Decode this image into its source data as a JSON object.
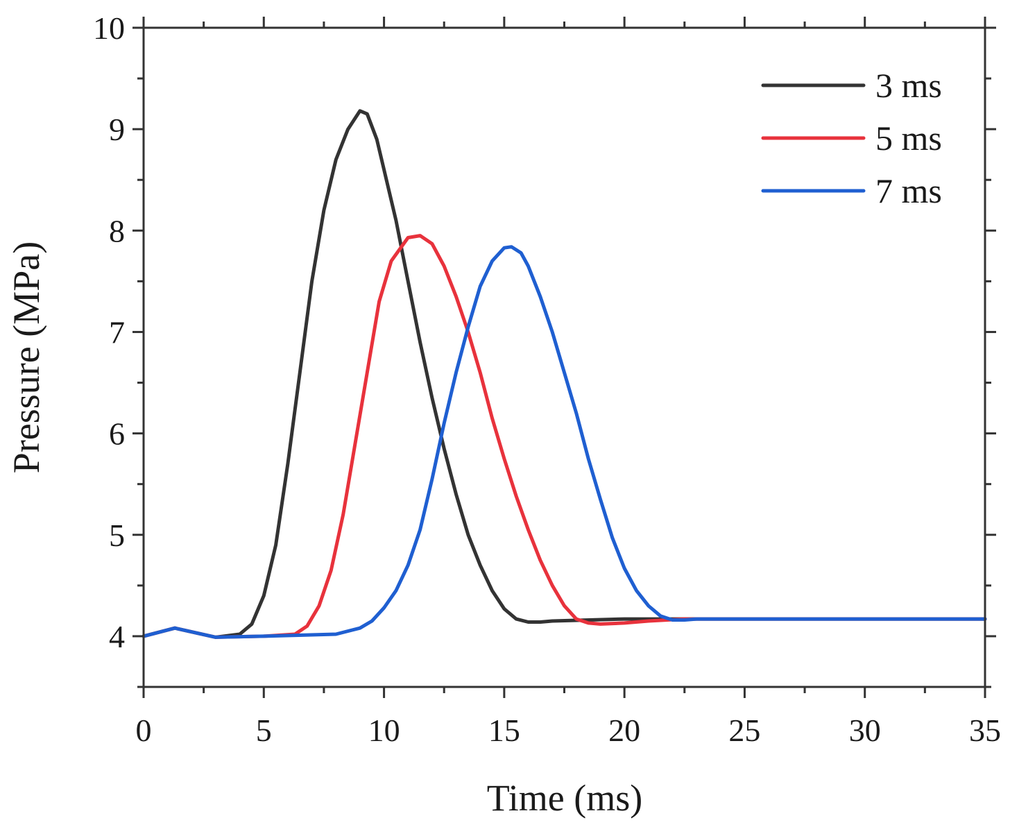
{
  "chart_data": {
    "type": "line",
    "title": "",
    "xlabel": "Time (ms)",
    "ylabel": "Pressure (MPa)",
    "xlim": [
      0,
      35
    ],
    "ylim": [
      3.5,
      10
    ],
    "x_ticks": [
      0,
      5,
      10,
      15,
      20,
      25,
      30,
      35
    ],
    "x_tick_labels": [
      "0",
      "5",
      "10",
      "15",
      "20",
      "25",
      "30",
      "35"
    ],
    "y_ticks": [
      4,
      5,
      6,
      7,
      8,
      9,
      10
    ],
    "y_tick_labels": [
      "4",
      "5",
      "6",
      "7",
      "8",
      "9",
      "10"
    ],
    "grid": false,
    "legend_position": "top-right",
    "series": [
      {
        "name": "3 ms",
        "color": "#333333",
        "x": [
          0,
          1.3,
          3,
          4,
          4.5,
          5,
          5.5,
          6,
          6.5,
          7,
          7.5,
          8,
          8.5,
          9,
          9.3,
          9.7,
          10,
          10.5,
          11,
          11.5,
          12,
          12.5,
          13,
          13.5,
          14,
          14.5,
          15,
          15.5,
          16,
          16.5,
          17,
          20,
          25,
          30,
          35
        ],
        "y": [
          4.0,
          4.08,
          3.99,
          4.02,
          4.12,
          4.4,
          4.9,
          5.7,
          6.6,
          7.5,
          8.2,
          8.7,
          9.0,
          9.18,
          9.15,
          8.9,
          8.6,
          8.1,
          7.5,
          6.9,
          6.35,
          5.85,
          5.4,
          5.0,
          4.7,
          4.45,
          4.27,
          4.17,
          4.14,
          4.14,
          4.15,
          4.17,
          4.17,
          4.17,
          4.17
        ]
      },
      {
        "name": "5 ms",
        "color": "#e8323c",
        "x": [
          0,
          1.3,
          3,
          5,
          6.3,
          6.8,
          7.3,
          7.8,
          8.3,
          8.8,
          9.3,
          9.8,
          10.3,
          11,
          11.5,
          12,
          12.5,
          13,
          13.5,
          14,
          14.5,
          15,
          15.5,
          16,
          16.5,
          17,
          17.5,
          18,
          18.5,
          19,
          20,
          21,
          22.5,
          25,
          30,
          35
        ],
        "y": [
          4.0,
          4.08,
          3.99,
          4.0,
          4.02,
          4.1,
          4.3,
          4.65,
          5.2,
          5.9,
          6.6,
          7.3,
          7.7,
          7.93,
          7.95,
          7.87,
          7.65,
          7.35,
          7.0,
          6.6,
          6.15,
          5.75,
          5.38,
          5.05,
          4.75,
          4.5,
          4.3,
          4.17,
          4.13,
          4.12,
          4.13,
          4.15,
          4.17,
          4.17,
          4.17,
          4.17
        ]
      },
      {
        "name": "7 ms",
        "color": "#1f5fd1",
        "x": [
          0,
          1.3,
          3,
          5,
          8,
          9,
          9.5,
          10,
          10.5,
          11,
          11.5,
          12,
          12.5,
          13,
          13.5,
          14,
          14.5,
          15,
          15.3,
          15.7,
          16,
          16.5,
          17,
          17.5,
          18,
          18.5,
          19,
          19.5,
          20,
          20.5,
          21,
          21.5,
          22,
          22.5,
          23,
          25,
          30,
          35
        ],
        "y": [
          4.0,
          4.08,
          3.99,
          4.0,
          4.02,
          4.08,
          4.15,
          4.28,
          4.45,
          4.7,
          5.05,
          5.55,
          6.1,
          6.6,
          7.05,
          7.45,
          7.7,
          7.83,
          7.84,
          7.78,
          7.65,
          7.35,
          7.0,
          6.6,
          6.2,
          5.75,
          5.35,
          4.97,
          4.67,
          4.45,
          4.3,
          4.2,
          4.16,
          4.16,
          4.17,
          4.17,
          4.17,
          4.17
        ]
      }
    ]
  }
}
